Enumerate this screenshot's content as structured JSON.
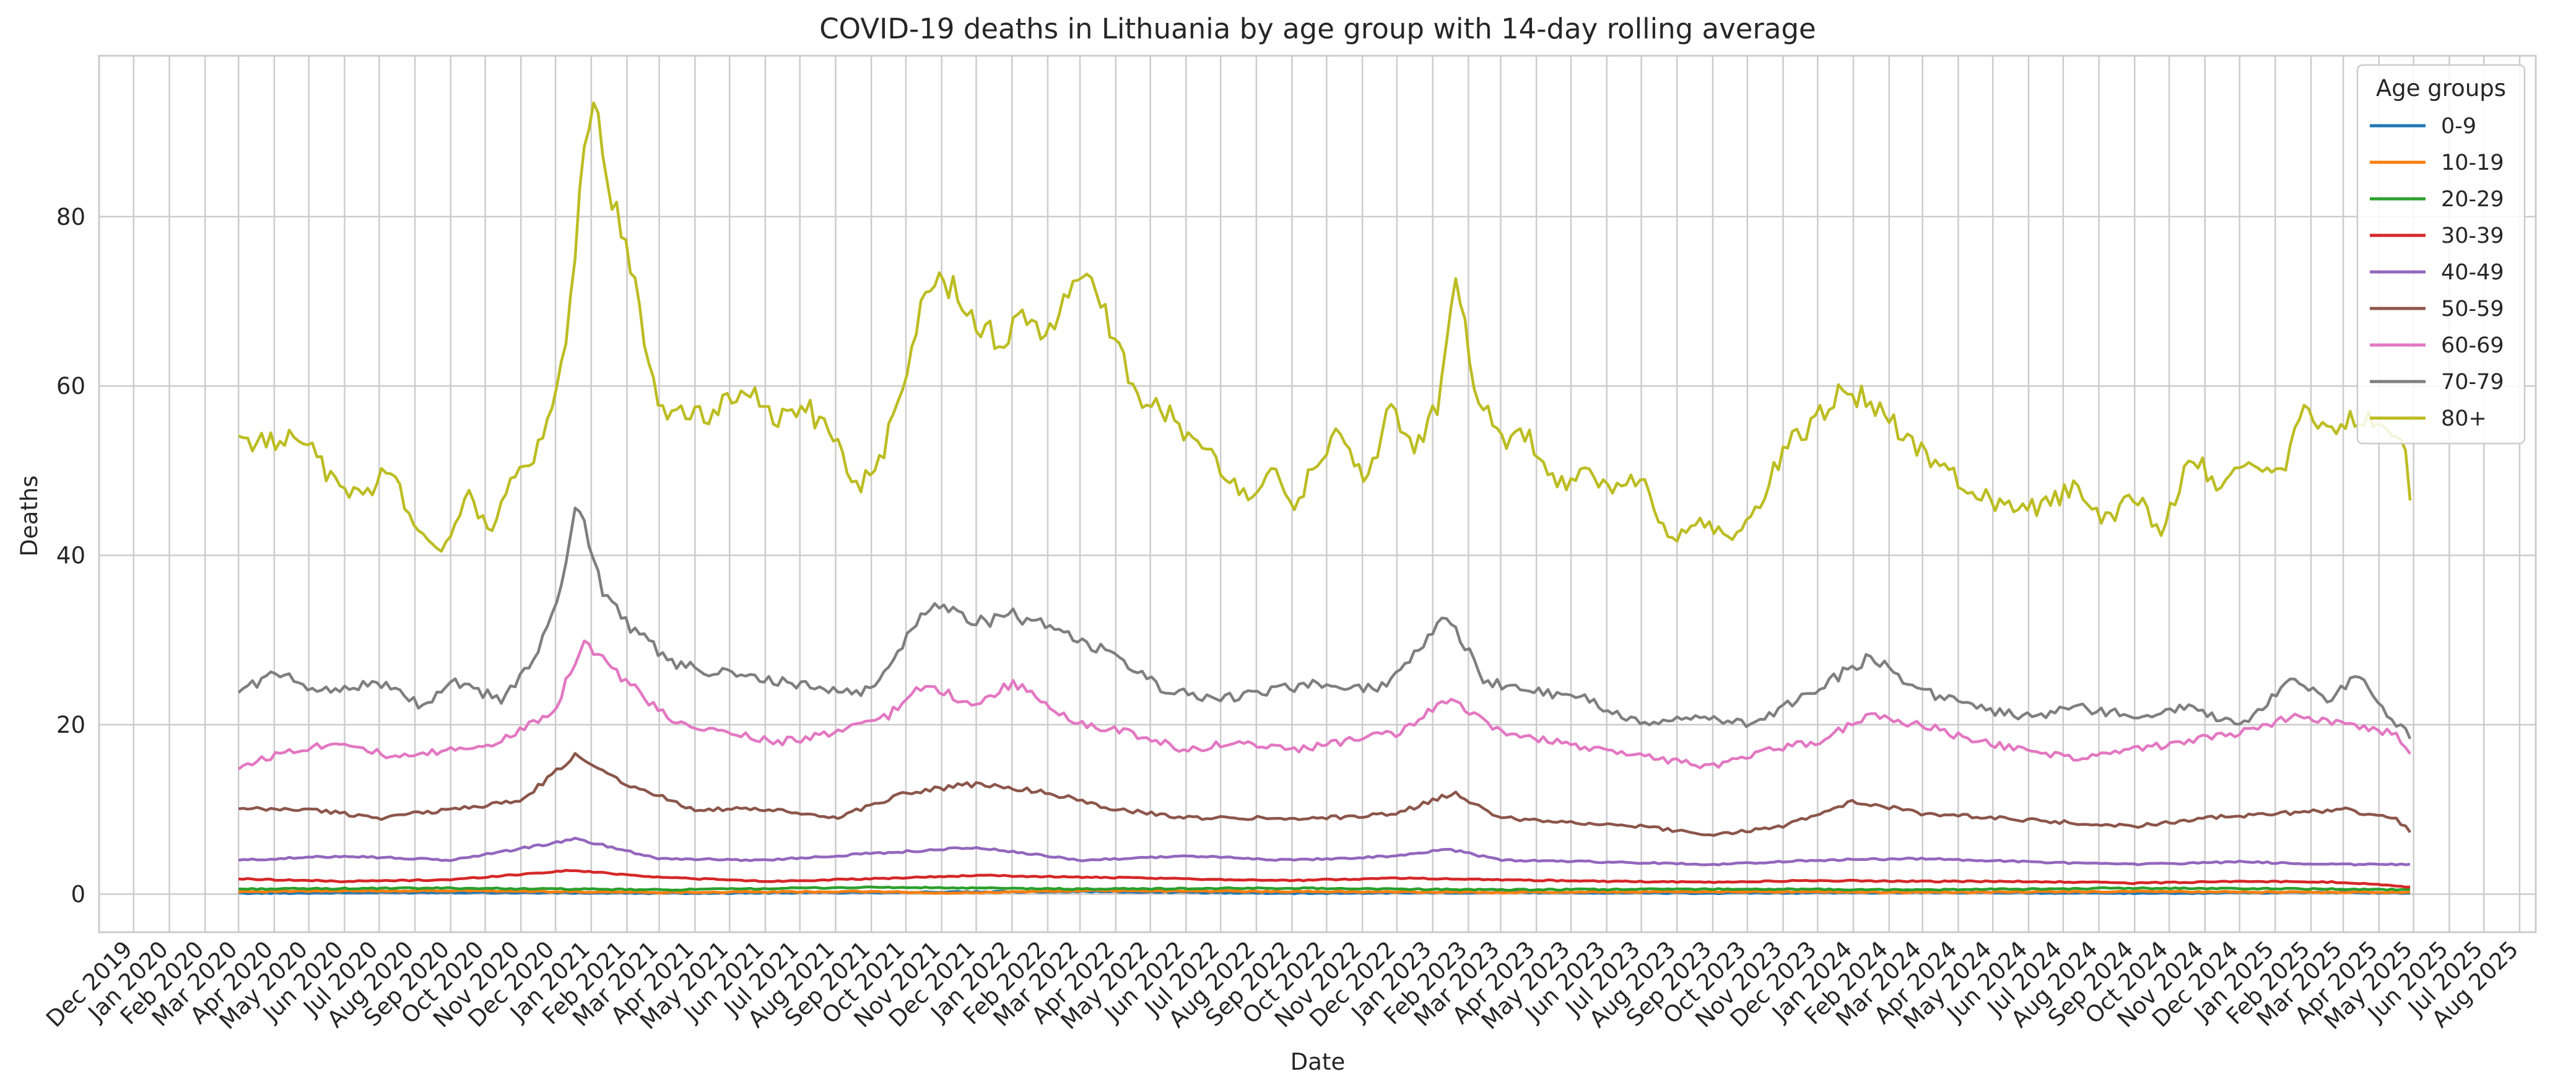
{
  "chart_data": {
    "type": "line",
    "title": "COVID-19 deaths in Lithuania by age group with 14-day rolling average",
    "xlabel": "Date",
    "ylabel": "Deaths",
    "xlim": [
      "2019-11-01",
      "2025-08-15"
    ],
    "ylim": [
      -4.5,
      99
    ],
    "yticks": [
      0,
      20,
      40,
      60,
      80
    ],
    "xticks": [
      "Dec 2019",
      "Jan 2020",
      "Feb 2020",
      "Mar 2020",
      "Apr 2020",
      "May 2020",
      "Jun 2020",
      "Jul 2020",
      "Aug 2020",
      "Sep 2020",
      "Oct 2020",
      "Nov 2020",
      "Dec 2020",
      "Jan 2021",
      "Feb 2021",
      "Mar 2021",
      "Apr 2021",
      "May 2021",
      "Jun 2021",
      "Jul 2021",
      "Aug 2021",
      "Sep 2021",
      "Oct 2021",
      "Nov 2021",
      "Dec 2021",
      "Jan 2022",
      "Feb 2022",
      "Mar 2022",
      "Apr 2022",
      "May 2022",
      "Jun 2022",
      "Jul 2022",
      "Aug 2022",
      "Sep 2022",
      "Oct 2022",
      "Nov 2022",
      "Dec 2022",
      "Jan 2023",
      "Feb 2023",
      "Mar 2023",
      "Apr 2023",
      "May 2023",
      "Jun 2023",
      "Jul 2023",
      "Aug 2023",
      "Sep 2023",
      "Oct 2023",
      "Nov 2023",
      "Dec 2023",
      "Jan 2024",
      "Feb 2024",
      "Mar 2024",
      "Apr 2024",
      "May 2024",
      "Jun 2024",
      "Jul 2024",
      "Aug 2024",
      "Sep 2024",
      "Oct 2024",
      "Nov 2024",
      "Dec 2024",
      "Jan 2025",
      "Feb 2025",
      "Mar 2025",
      "Apr 2025",
      "May 2025",
      "Jun 2025",
      "Jul 2025",
      "Aug 2025"
    ],
    "grid": true,
    "legend": {
      "title": "Age groups",
      "position": "top-right"
    },
    "series": [
      {
        "name": "0-9",
        "color": "#1f77b4",
        "x": [
          "2020-03-01",
          "2020-09-01",
          "2021-03-01",
          "2021-09-01",
          "2022-03-01",
          "2022-09-01",
          "2023-03-01",
          "2023-09-01",
          "2024-03-01",
          "2024-09-01",
          "2025-03-01",
          "2025-05-01"
        ],
        "y": [
          0.1,
          0.2,
          0.1,
          0.2,
          0.3,
          0.1,
          0.2,
          0.1,
          0.2,
          0.1,
          0.2,
          0.1
        ]
      },
      {
        "name": "10-19",
        "color": "#ff7f0e",
        "x": [
          "2020-03-01",
          "2020-09-01",
          "2021-03-01",
          "2021-09-01",
          "2021-11-01",
          "2022-03-01",
          "2022-09-01",
          "2023-03-01",
          "2023-09-01",
          "2024-03-01",
          "2024-09-01",
          "2025-03-01",
          "2025-05-01"
        ],
        "y": [
          0.3,
          0.4,
          0.2,
          0.3,
          0.1,
          0.4,
          0.3,
          0.2,
          0.3,
          0.2,
          0.3,
          0.2,
          0.2
        ]
      },
      {
        "name": "20-29",
        "color": "#2ca02c",
        "x": [
          "2020-03-01",
          "2020-09-01",
          "2021-03-01",
          "2021-09-01",
          "2022-03-01",
          "2022-09-01",
          "2023-03-01",
          "2023-09-01",
          "2024-03-01",
          "2024-09-01",
          "2025-03-01",
          "2025-05-01"
        ],
        "y": [
          0.6,
          0.7,
          0.5,
          0.8,
          0.6,
          0.7,
          0.5,
          0.6,
          0.5,
          0.7,
          0.6,
          0.5
        ]
      },
      {
        "name": "30-39",
        "color": "#d62728",
        "x": [
          "2020-03-01",
          "2020-06-01",
          "2020-09-01",
          "2020-12-15",
          "2021-03-01",
          "2021-06-01",
          "2021-09-01",
          "2021-12-01",
          "2022-03-01",
          "2022-06-01",
          "2022-09-01",
          "2022-12-01",
          "2023-03-01",
          "2023-06-01",
          "2023-09-01",
          "2023-12-01",
          "2024-03-01",
          "2024-06-01",
          "2024-09-01",
          "2024-12-01",
          "2025-03-01",
          "2025-05-01"
        ],
        "y": [
          1.8,
          1.5,
          1.7,
          2.8,
          2.0,
          1.5,
          1.8,
          2.2,
          2.0,
          1.8,
          1.6,
          1.9,
          1.7,
          1.5,
          1.4,
          1.6,
          1.5,
          1.5,
          1.3,
          1.5,
          1.4,
          0.8
        ]
      },
      {
        "name": "40-49",
        "color": "#9467bd",
        "x": [
          "2020-03-01",
          "2020-06-01",
          "2020-09-01",
          "2020-12-20",
          "2021-03-01",
          "2021-06-01",
          "2021-09-01",
          "2021-12-01",
          "2022-03-01",
          "2022-06-01",
          "2022-09-01",
          "2022-12-01",
          "2023-01-15",
          "2023-03-01",
          "2023-06-01",
          "2023-09-01",
          "2023-12-01",
          "2024-03-01",
          "2024-06-01",
          "2024-09-01",
          "2024-12-01",
          "2025-03-01",
          "2025-05-01"
        ],
        "y": [
          4.0,
          4.5,
          4.0,
          6.5,
          4.2,
          4.0,
          4.8,
          5.5,
          4.0,
          4.5,
          4.0,
          4.5,
          5.3,
          4.0,
          3.8,
          3.5,
          4.0,
          4.2,
          3.8,
          3.5,
          3.8,
          3.5,
          3.5
        ]
      },
      {
        "name": "50-59",
        "color": "#8c564b",
        "x": [
          "2020-03-01",
          "2020-05-01",
          "2020-07-01",
          "2020-09-01",
          "2020-11-01",
          "2020-12-20",
          "2021-02-01",
          "2021-04-01",
          "2021-06-01",
          "2021-08-01",
          "2021-10-01",
          "2021-12-01",
          "2022-02-01",
          "2022-04-01",
          "2022-06-01",
          "2022-08-01",
          "2022-10-01",
          "2022-12-01",
          "2023-01-20",
          "2023-03-01",
          "2023-05-01",
          "2023-07-01",
          "2023-09-01",
          "2023-11-01",
          "2024-01-01",
          "2024-03-01",
          "2024-05-01",
          "2024-07-01",
          "2024-09-01",
          "2024-11-01",
          "2025-01-01",
          "2025-03-01",
          "2025-04-15",
          "2025-05-01"
        ],
        "y": [
          10,
          10,
          9,
          10,
          11,
          16.5,
          13,
          10,
          10,
          9,
          12,
          13,
          12,
          10,
          9,
          9,
          9,
          9.5,
          12,
          9,
          8.5,
          8,
          7,
          8,
          11,
          9.5,
          9,
          8.5,
          8,
          9,
          9.5,
          10,
          9,
          7
        ]
      },
      {
        "name": "60-69",
        "color": "#e377c2",
        "x": [
          "2020-03-01",
          "2020-04-15",
          "2020-06-01",
          "2020-07-15",
          "2020-09-01",
          "2020-10-15",
          "2020-12-01",
          "2020-12-25",
          "2021-02-01",
          "2021-03-15",
          "2021-05-01",
          "2021-06-15",
          "2021-08-01",
          "2021-09-15",
          "2021-10-20",
          "2021-12-01",
          "2022-01-01",
          "2022-03-01",
          "2022-04-15",
          "2022-06-01",
          "2022-07-15",
          "2022-09-01",
          "2022-10-15",
          "2022-12-01",
          "2023-01-15",
          "2023-03-01",
          "2023-04-15",
          "2023-06-01",
          "2023-07-15",
          "2023-09-01",
          "2023-10-15",
          "2023-12-01",
          "2024-01-15",
          "2024-03-01",
          "2024-04-15",
          "2024-06-01",
          "2024-07-15",
          "2024-09-01",
          "2024-10-15",
          "2024-12-01",
          "2025-01-15",
          "2025-03-01",
          "2025-04-15",
          "2025-05-01"
        ],
        "y": [
          15,
          17,
          18,
          16,
          17,
          18,
          22,
          30,
          25,
          20,
          19,
          18,
          19,
          21,
          25,
          22,
          25,
          20,
          19,
          17,
          18,
          17,
          18,
          19,
          23,
          19,
          18,
          17,
          16,
          15,
          17,
          18,
          21,
          20,
          18,
          17,
          16,
          17,
          18,
          19,
          21,
          20,
          19,
          15.5
        ]
      },
      {
        "name": "70-79",
        "color": "#7f7f7f",
        "x": [
          "2020-03-01",
          "2020-04-01",
          "2020-05-15",
          "2020-07-01",
          "2020-08-10",
          "2020-09-01",
          "2020-10-15",
          "2020-11-15",
          "2020-12-05",
          "2020-12-20",
          "2021-01-10",
          "2021-02-01",
          "2021-03-15",
          "2021-05-01",
          "2021-06-15",
          "2021-08-01",
          "2021-09-01",
          "2021-10-25",
          "2021-12-01",
          "2022-01-01",
          "2022-02-15",
          "2022-04-01",
          "2022-05-15",
          "2022-07-01",
          "2022-08-15",
          "2022-10-01",
          "2022-11-15",
          "2023-01-15",
          "2023-02-15",
          "2023-04-01",
          "2023-05-15",
          "2023-07-01",
          "2023-08-15",
          "2023-10-01",
          "2023-11-15",
          "2024-01-15",
          "2024-03-01",
          "2024-04-15",
          "2024-06-01",
          "2024-07-15",
          "2024-09-01",
          "2024-10-15",
          "2024-12-01",
          "2025-01-15",
          "2025-02-15",
          "2025-03-15",
          "2025-04-15",
          "2025-05-01"
        ],
        "y": [
          24,
          26,
          24,
          25,
          22,
          25,
          23,
          28,
          36,
          47,
          36,
          32,
          27,
          26,
          25,
          24,
          24,
          35,
          32,
          33,
          31,
          28,
          24,
          23,
          24,
          25,
          24,
          33,
          25,
          24,
          23,
          20,
          21,
          20,
          23,
          28,
          24,
          22,
          21,
          22,
          21,
          22,
          20,
          25,
          23,
          26,
          20,
          18.5
        ]
      },
      {
        "name": "80+",
        "color": "#bcbd22",
        "x": [
          "2020-03-01",
          "2020-03-25",
          "2020-04-20",
          "2020-05-20",
          "2020-06-15",
          "2020-07-10",
          "2020-08-01",
          "2020-08-20",
          "2020-09-15",
          "2020-10-05",
          "2020-10-25",
          "2020-11-15",
          "2020-12-01",
          "2020-12-10",
          "2020-12-20",
          "2021-01-01",
          "2021-01-20",
          "2021-02-10",
          "2021-03-01",
          "2021-03-25",
          "2021-04-20",
          "2021-05-15",
          "2021-06-10",
          "2021-07-05",
          "2021-08-01",
          "2021-08-20",
          "2021-09-10",
          "2021-10-01",
          "2021-10-20",
          "2021-11-10",
          "2021-12-01",
          "2021-12-20",
          "2022-01-10",
          "2022-02-01",
          "2022-02-20",
          "2022-03-10",
          "2022-04-01",
          "2022-04-20",
          "2022-05-15",
          "2022-06-10",
          "2022-07-05",
          "2022-07-25",
          "2022-08-15",
          "2022-09-05",
          "2022-09-25",
          "2022-10-15",
          "2022-11-05",
          "2022-11-25",
          "2022-12-15",
          "2023-01-05",
          "2023-01-20",
          "2023-02-10",
          "2023-03-05",
          "2023-03-25",
          "2023-04-20",
          "2023-05-15",
          "2023-06-05",
          "2023-07-01",
          "2023-07-25",
          "2023-08-20",
          "2023-09-15",
          "2023-10-10",
          "2023-11-05",
          "2023-12-01",
          "2023-12-20",
          "2024-01-15",
          "2024-02-10",
          "2024-03-05",
          "2024-04-01",
          "2024-04-25",
          "2024-05-20",
          "2024-06-15",
          "2024-07-10",
          "2024-08-05",
          "2024-09-01",
          "2024-09-25",
          "2024-10-20",
          "2024-11-15",
          "2024-12-10",
          "2025-01-05",
          "2025-01-25",
          "2025-02-20",
          "2025-03-15",
          "2025-04-05",
          "2025-04-25",
          "2025-05-01"
        ],
        "y": [
          54,
          53,
          55,
          49,
          47,
          50,
          44,
          40,
          47,
          43,
          49,
          52,
          58,
          65,
          80,
          94,
          82,
          70,
          58,
          56,
          57,
          60,
          56,
          58,
          53,
          48,
          52,
          60,
          73,
          72,
          68,
          65,
          68,
          66,
          72,
          73,
          65,
          59,
          57,
          53,
          50,
          47,
          50,
          46,
          52,
          55,
          48,
          58,
          52,
          58,
          73,
          58,
          53,
          54,
          48,
          50,
          47,
          49,
          42,
          44,
          42,
          46,
          53,
          56,
          60,
          58,
          55,
          52,
          49,
          47,
          45,
          46,
          48,
          44,
          47,
          43,
          52,
          48,
          51,
          49,
          57,
          55,
          56,
          55,
          52,
          42
        ]
      }
    ]
  }
}
